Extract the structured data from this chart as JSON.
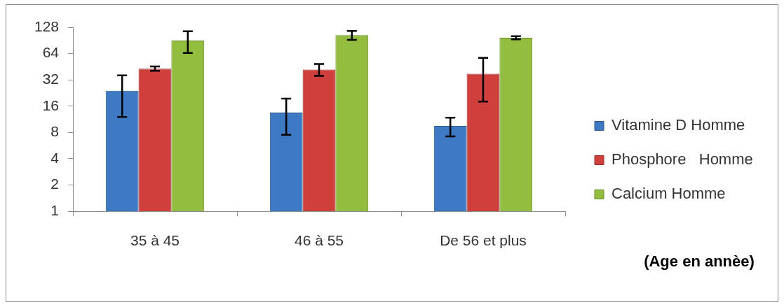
{
  "chart_data": {
    "type": "bar",
    "categories": [
      "35 à 45",
      "46 à 55",
      "De 56 et plus"
    ],
    "series": [
      {
        "name": "Vitamine D Homme",
        "color": "#3d7ac3",
        "values": [
          24,
          13.5,
          9.5
        ],
        "errors": [
          12,
          6,
          2.3
        ]
      },
      {
        "name": "Phosphore   Homme",
        "color": "#cf403c",
        "values": [
          43,
          42,
          37.5
        ],
        "errors": [
          2.5,
          6.5,
          19.5
        ]
      },
      {
        "name": "Calcium Homme",
        "color": "#93bd3e",
        "values": [
          90,
          104,
          97
        ],
        "errors": [
          25,
          12,
          4
        ]
      }
    ],
    "annotations": [
      "(Age en annèe)"
    ],
    "ylim": [
      1,
      128
    ],
    "yticks": [
      1,
      2,
      4,
      8,
      16,
      32,
      64,
      128
    ],
    "log": true,
    "grid": false,
    "legend": "right"
  }
}
